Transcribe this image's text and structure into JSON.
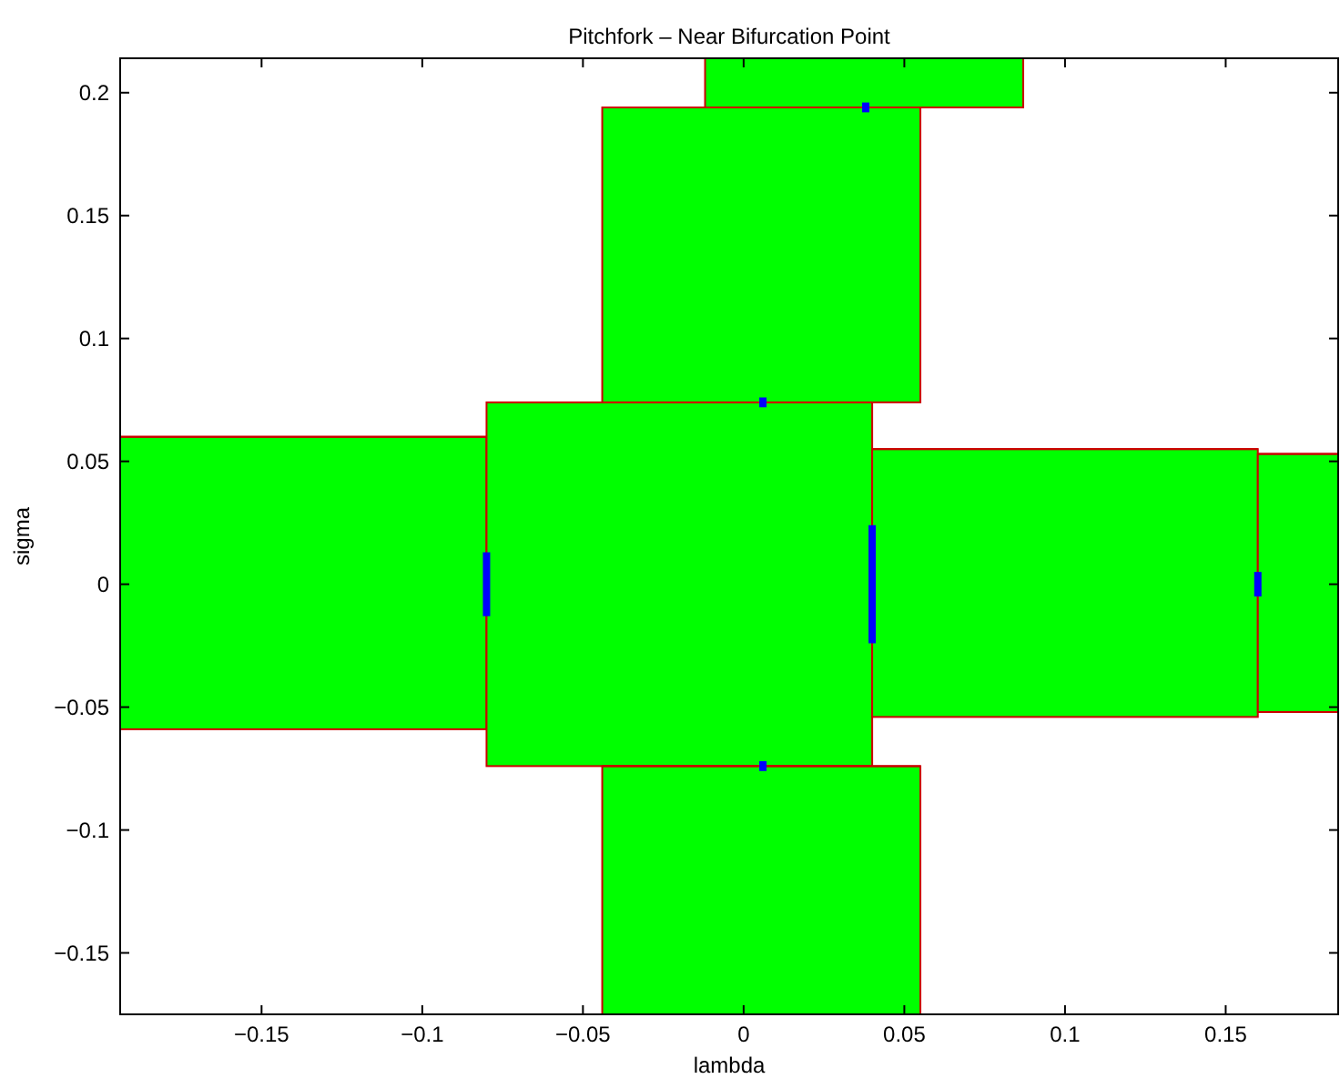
{
  "chart_data": {
    "type": "bar",
    "title": "Pitchfork – Near Bifurcation Point",
    "xlabel": "lambda",
    "ylabel": "sigma",
    "xlim": [
      -0.194,
      0.185
    ],
    "ylim": [
      -0.175,
      0.214
    ],
    "xticks": [
      -0.15,
      -0.1,
      -0.05,
      0,
      0.05,
      0.1,
      0.15
    ],
    "yticks": [
      -0.15,
      -0.1,
      -0.05,
      0,
      0.05,
      0.1,
      0.15,
      0.2
    ],
    "series": [
      {
        "color": "#00ff00",
        "x": [
          -0.137
        ],
        "base": [
          -0.059
        ],
        "values": [
          0.119
        ],
        "xerrors": [
          [
            -0.194,
            -0.08
          ]
        ]
      },
      {
        "color": "#00ff00",
        "x": [
          -0.02
        ],
        "base": [
          -0.074
        ],
        "values": [
          0.148
        ],
        "xerrors": [
          [
            -0.08,
            0.04
          ]
        ]
      },
      {
        "color": "#00ff00",
        "x": [
          0.0055
        ],
        "base": [
          0.074
        ],
        "values": [
          0.12
        ],
        "xerrors": [
          [
            -0.044,
            0.055
          ]
        ]
      },
      {
        "color": "#00ff00",
        "x": [
          0.0055
        ],
        "base": [
          -0.175
        ],
        "values": [
          0.101
        ],
        "xerrors": [
          [
            -0.044,
            0.055
          ]
        ]
      },
      {
        "color": "#00ff00",
        "x": [
          0.0375
        ],
        "base": [
          0.194
        ],
        "values": [
          0.02
        ],
        "xerrors": [
          [
            -0.012,
            0.087
          ]
        ]
      },
      {
        "color": "#00ff00",
        "x": [
          0.1
        ],
        "base": [
          -0.054
        ],
        "values": [
          0.109
        ],
        "xerrors": [
          [
            0.04,
            0.16
          ]
        ]
      },
      {
        "color": "#00ff00",
        "x": [
          0.1725
        ],
        "base": [
          -0.052
        ],
        "values": [
          0.105
        ],
        "xerrors": [
          [
            0.16,
            0.185
          ]
        ]
      },
      {
        "type": "line",
        "color": "#0000ff",
        "x": [
          -0.08,
          -0.08
        ],
        "values": [
          -0.013,
          0.013
        ]
      },
      {
        "type": "line",
        "color": "#0000ff",
        "x": [
          0.04,
          0.04
        ],
        "values": [
          -0.024,
          0.024
        ]
      },
      {
        "type": "line",
        "color": "#0000ff",
        "x": [
          0.16,
          0.16
        ],
        "values": [
          -0.005,
          0.005
        ]
      },
      {
        "type": "line",
        "color": "#0000ff",
        "x": [
          0.006,
          0.006
        ],
        "values": [
          0.072,
          0.076
        ]
      },
      {
        "type": "line",
        "color": "#0000ff",
        "x": [
          0.006,
          0.006
        ],
        "values": [
          -0.076,
          -0.072
        ]
      },
      {
        "type": "line",
        "color": "#0000ff",
        "x": [
          0.038,
          0.038
        ],
        "values": [
          0.192,
          0.196
        ]
      }
    ]
  }
}
